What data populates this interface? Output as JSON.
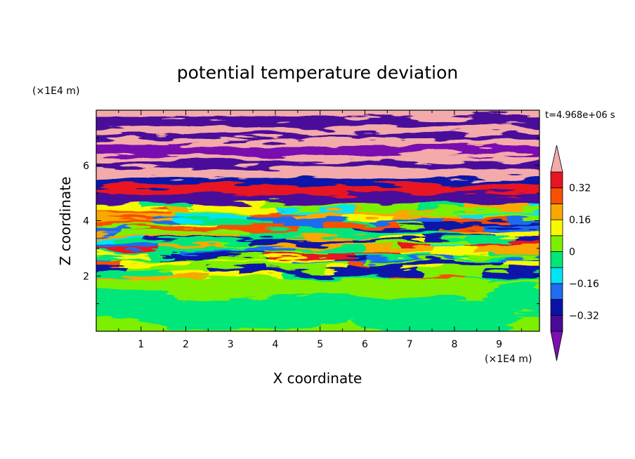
{
  "chart_data": {
    "type": "heatmap",
    "title": "potential temperature deviation",
    "xlabel": "X coordinate",
    "ylabel": "Z coordinate",
    "x_unit": "(×1E4 m)",
    "y_unit": "(×1E4 m)",
    "time_label": "t=4.968e+06 s",
    "xlim": [
      0,
      9.9
    ],
    "ylim": [
      0,
      8
    ],
    "x_ticks": [
      1,
      2,
      3,
      4,
      5,
      6,
      7,
      8,
      9
    ],
    "y_ticks": [
      2,
      4,
      6
    ],
    "colorbar": {
      "levels": [
        -0.4,
        -0.32,
        -0.24,
        -0.16,
        -0.08,
        0,
        0.08,
        0.16,
        0.24,
        0.32,
        0.4
      ],
      "labels": [
        "0.32",
        "0.16",
        "0",
        "−0.16",
        "−0.32"
      ],
      "label_values": [
        0.32,
        0.16,
        0,
        -0.16,
        -0.32
      ],
      "colors": [
        "#7a10b0",
        "#4a0a9a",
        "#0a12a8",
        "#1e6cf0",
        "#00e4f4",
        "#00e67a",
        "#7cf000",
        "#f8f800",
        "#f8a800",
        "#f85000",
        "#e81420",
        "#f4aaaa"
      ],
      "extend": "both"
    },
    "grid": false
  }
}
